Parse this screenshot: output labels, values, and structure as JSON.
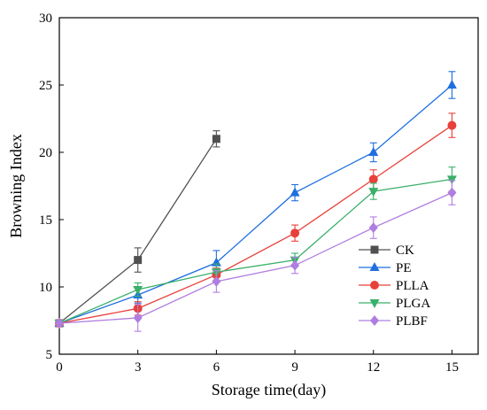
{
  "chart_data": {
    "type": "line",
    "title": "",
    "xlabel": "Storage time(day)",
    "ylabel": "Browning Index",
    "xlim": [
      0,
      16
    ],
    "ylim": [
      5,
      30
    ],
    "xticks": [
      0,
      3,
      6,
      9,
      12,
      15
    ],
    "yticks": [
      5,
      10,
      15,
      20,
      25,
      30
    ],
    "grid": false,
    "legend_position": "lower-right",
    "series": [
      {
        "name": "CK",
        "color": "#505050",
        "marker": "square",
        "x": [
          0,
          3,
          6
        ],
        "values": [
          7.3,
          12.0,
          21.0
        ],
        "error": [
          0.2,
          0.9,
          0.6
        ]
      },
      {
        "name": "PE",
        "color": "#1f6fe0",
        "marker": "triangle-up",
        "x": [
          0,
          3,
          6,
          9,
          12,
          15
        ],
        "values": [
          7.3,
          9.4,
          11.8,
          17.0,
          20.0,
          25.0
        ],
        "error": [
          0.2,
          0.6,
          0.9,
          0.6,
          0.7,
          1.0
        ]
      },
      {
        "name": "PLLA",
        "color": "#e8403a",
        "marker": "circle",
        "x": [
          0,
          3,
          6,
          9,
          12,
          15
        ],
        "values": [
          7.3,
          8.4,
          10.9,
          14.0,
          18.0,
          22.0
        ],
        "error": [
          0.2,
          0.5,
          0.5,
          0.6,
          0.7,
          0.9
        ]
      },
      {
        "name": "PLGA",
        "color": "#3aaf6a",
        "marker": "triangle-down",
        "x": [
          0,
          3,
          6,
          9,
          12,
          15
        ],
        "values": [
          7.3,
          9.8,
          11.1,
          12.0,
          17.1,
          18.0
        ],
        "error": [
          0.2,
          0.5,
          0.6,
          0.5,
          0.6,
          0.9
        ]
      },
      {
        "name": "PLBF",
        "color": "#b07ee0",
        "marker": "diamond",
        "x": [
          0,
          3,
          6,
          9,
          12,
          15
        ],
        "values": [
          7.3,
          7.7,
          10.4,
          11.6,
          14.4,
          17.0
        ],
        "error": [
          0.2,
          1.0,
          0.8,
          0.6,
          0.8,
          0.9
        ]
      }
    ]
  }
}
